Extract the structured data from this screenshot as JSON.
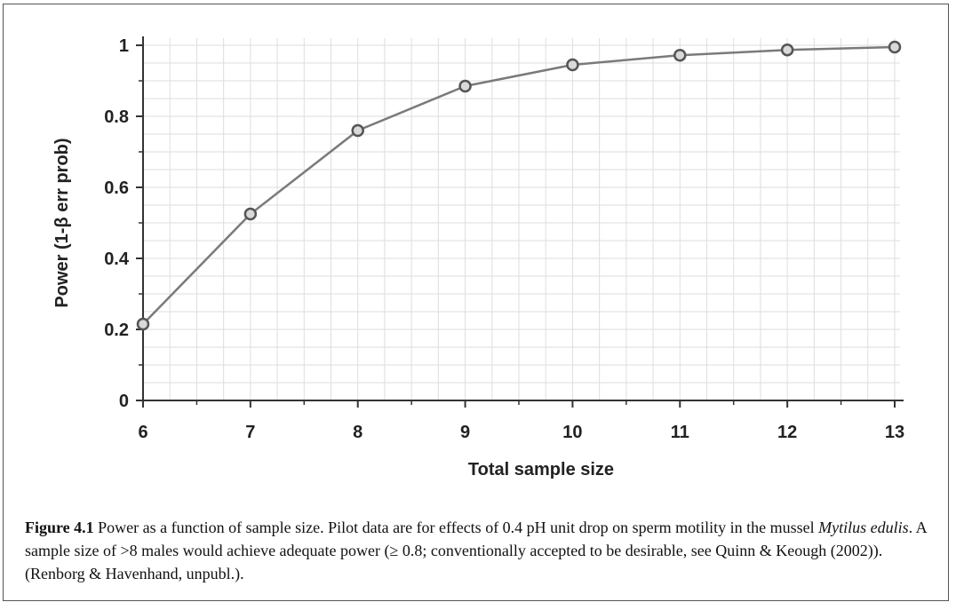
{
  "chart_data": {
    "type": "line",
    "xlabel": "Total sample size",
    "ylabel": "Power (1-β err prob)",
    "x": [
      6,
      7,
      8,
      9,
      10,
      11,
      12,
      13
    ],
    "series": [
      {
        "values": [
          0.215,
          0.525,
          0.76,
          0.885,
          0.945,
          0.972,
          0.987,
          0.995
        ]
      }
    ],
    "xlim": [
      6,
      13
    ],
    "ylim": [
      0,
      1
    ],
    "x_ticks": [
      "6",
      "7",
      "8",
      "9",
      "10",
      "11",
      "12",
      "13"
    ],
    "y_ticks": [
      "0",
      "0.2",
      "0.4",
      "0.6",
      "0.8",
      "1"
    ],
    "y_tick_values": [
      0,
      0.2,
      0.4,
      0.6,
      0.8,
      1
    ],
    "grid": true,
    "line_color": "#7a7a7a",
    "marker_color": "#555555"
  },
  "caption": {
    "label": "Figure 4.1",
    "t1": " Power as a function of sample size. Pilot data are for effects of 0.4 pH unit drop on sperm motility in the mussel ",
    "species": "Mytilus edulis",
    "t2": ". A sample size of >8 males would achieve adequate power (≥ 0.8; conventionally accepted to be desirable, see Quinn & Keough (2002)). (Renborg & Havenhand, unpubl.)."
  }
}
